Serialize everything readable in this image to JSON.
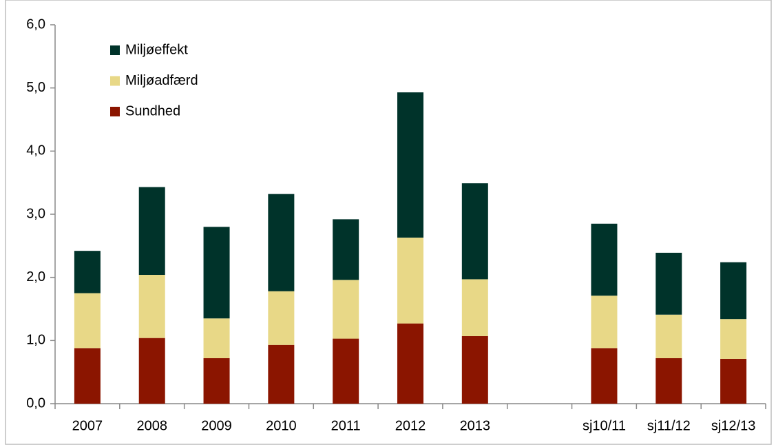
{
  "chart_data": {
    "type": "stacked_bar",
    "categories": [
      "2007",
      "2008",
      "2009",
      "2010",
      "2011",
      "2012",
      "2013",
      null,
      "sj10/11",
      "sj11/12",
      "sj12/13"
    ],
    "series": [
      {
        "name": "Sundhed",
        "color": "#8b1500",
        "values": [
          0.88,
          1.04,
          0.72,
          0.93,
          1.03,
          1.27,
          1.07,
          null,
          0.88,
          0.72,
          0.71
        ]
      },
      {
        "name": "Miljøadfærd",
        "color": "#e8d887",
        "values": [
          0.87,
          1.0,
          0.63,
          0.85,
          0.93,
          1.36,
          0.9,
          null,
          0.83,
          0.69,
          0.63
        ]
      },
      {
        "name": "Miljøeffekt",
        "color": "#00332a",
        "values": [
          0.67,
          1.39,
          1.45,
          1.54,
          0.96,
          2.3,
          1.52,
          null,
          1.14,
          0.98,
          0.9
        ]
      }
    ],
    "ylim": [
      0,
      6
    ],
    "yticks": [
      {
        "value": 0,
        "label": "0,0"
      },
      {
        "value": 1,
        "label": "1,0"
      },
      {
        "value": 2,
        "label": "2,0"
      },
      {
        "value": 3,
        "label": "3,0"
      },
      {
        "value": 4,
        "label": "4,0"
      },
      {
        "value": 5,
        "label": "5,0"
      },
      {
        "value": 6,
        "label": "6,0"
      }
    ],
    "legend": "upper left"
  }
}
